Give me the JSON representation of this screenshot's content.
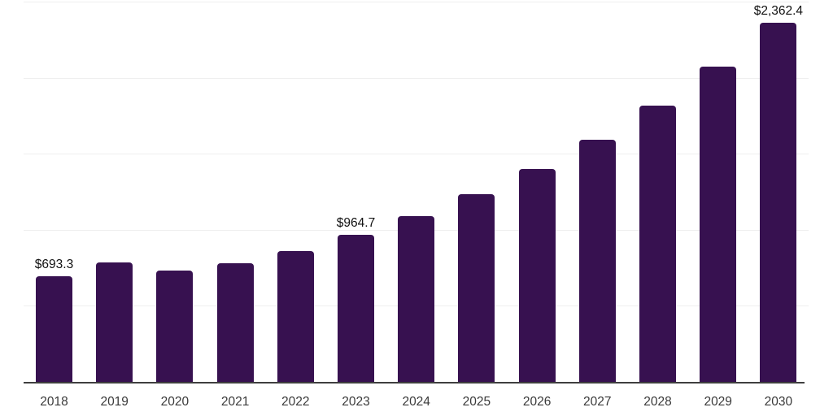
{
  "chart": {
    "colors": {
      "bar": "#371150",
      "axis": "#3f3f3f",
      "gridline": "#efefef",
      "data_label": "#111111",
      "tick_label": "#3a3a3a",
      "background": "#ffffff"
    }
  },
  "chart_data": {
    "type": "bar",
    "title": "",
    "xlabel": "",
    "ylabel": "",
    "categories": [
      "2018",
      "2019",
      "2020",
      "2021",
      "2022",
      "2023",
      "2024",
      "2025",
      "2026",
      "2027",
      "2028",
      "2029",
      "2030"
    ],
    "values": [
      693.3,
      783,
      730,
      778,
      858,
      964.7,
      1092,
      1236,
      1401,
      1593,
      1817,
      2072,
      2362.4
    ],
    "data_labels": [
      "$693.3",
      null,
      null,
      null,
      null,
      "$964.7",
      null,
      null,
      null,
      null,
      null,
      null,
      "$2,362.4"
    ],
    "ylim": [
      0,
      2500
    ],
    "grid_interval": 500,
    "grid": "horizontal",
    "legend_position": "none",
    "y_axis_tick_labels_visible": false
  }
}
